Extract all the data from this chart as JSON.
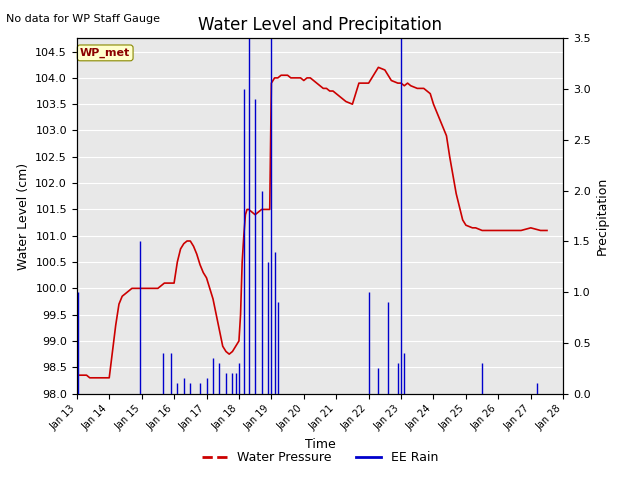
{
  "title": "Water Level and Precipitation",
  "top_left_text": "No data for WP Staff Gauge",
  "ylabel_left": "Water Level (cm)",
  "ylabel_right": "Precipitation",
  "xlabel": "Time",
  "legend_label_red": "Water Pressure",
  "legend_label_blue": "EE Rain",
  "wp_met_label": "WP_met",
  "ylim_left": [
    98.0,
    104.75
  ],
  "ylim_right": [
    0.0,
    3.5
  ],
  "yticks_left": [
    98.0,
    98.5,
    99.0,
    99.5,
    100.0,
    100.5,
    101.0,
    101.5,
    102.0,
    102.5,
    103.0,
    103.5,
    104.0,
    104.5
  ],
  "yticks_right": [
    0.0,
    0.5,
    1.0,
    1.5,
    2.0,
    2.5,
    3.0,
    3.5
  ],
  "plot_bg_color": "#e8e8e8",
  "red_color": "#cc0000",
  "blue_color": "#0000cc",
  "water_pressure": {
    "x": [
      13.0,
      13.05,
      13.1,
      13.2,
      13.3,
      13.4,
      13.5,
      13.6,
      13.7,
      13.8,
      13.9,
      14.0,
      14.1,
      14.2,
      14.3,
      14.4,
      14.5,
      14.6,
      14.7,
      14.8,
      14.9,
      15.0,
      15.1,
      15.2,
      15.3,
      15.4,
      15.5,
      15.6,
      15.7,
      15.8,
      15.9,
      16.0,
      16.05,
      16.1,
      16.2,
      16.3,
      16.4,
      16.5,
      16.6,
      16.7,
      16.8,
      16.9,
      17.0,
      17.1,
      17.2,
      17.3,
      17.4,
      17.5,
      17.6,
      17.7,
      17.8,
      17.9,
      18.0,
      18.05,
      18.1,
      18.15,
      18.2,
      18.25,
      18.3,
      18.4,
      18.5,
      18.6,
      18.7,
      18.8,
      18.85,
      18.9,
      18.95,
      19.0,
      19.05,
      19.1,
      19.2,
      19.3,
      19.4,
      19.5,
      19.6,
      19.7,
      19.8,
      19.9,
      20.0,
      20.1,
      20.2,
      20.3,
      20.4,
      20.5,
      20.6,
      20.7,
      20.8,
      20.9,
      21.0,
      21.1,
      21.2,
      21.3,
      21.5,
      21.7,
      21.9,
      22.0,
      22.1,
      22.2,
      22.3,
      22.5,
      22.7,
      22.9,
      23.0,
      23.1,
      23.2,
      23.3,
      23.5,
      23.7,
      23.9,
      24.0,
      24.2,
      24.4,
      24.5,
      24.7,
      24.9,
      25.0,
      25.2,
      25.3,
      25.5,
      25.7,
      26.0,
      26.3,
      26.5,
      26.7,
      27.0,
      27.3,
      27.5
    ],
    "y": [
      98.3,
      98.35,
      98.35,
      98.35,
      98.35,
      98.3,
      98.3,
      98.3,
      98.3,
      98.3,
      98.3,
      98.3,
      98.8,
      99.3,
      99.7,
      99.85,
      99.9,
      99.95,
      100.0,
      100.0,
      100.0,
      100.0,
      100.0,
      100.0,
      100.0,
      100.0,
      100.0,
      100.05,
      100.1,
      100.1,
      100.1,
      100.1,
      100.3,
      100.5,
      100.75,
      100.85,
      100.9,
      100.9,
      100.8,
      100.65,
      100.45,
      100.3,
      100.2,
      100.0,
      99.8,
      99.5,
      99.2,
      98.9,
      98.8,
      98.75,
      98.8,
      98.9,
      99.0,
      99.5,
      100.5,
      101.0,
      101.4,
      101.5,
      101.5,
      101.45,
      101.4,
      101.45,
      101.5,
      101.5,
      101.5,
      101.5,
      101.5,
      103.9,
      103.95,
      104.0,
      104.0,
      104.05,
      104.05,
      104.05,
      104.0,
      104.0,
      104.0,
      104.0,
      103.95,
      104.0,
      104.0,
      103.95,
      103.9,
      103.85,
      103.8,
      103.8,
      103.75,
      103.75,
      103.7,
      103.65,
      103.6,
      103.55,
      103.5,
      103.9,
      103.9,
      103.9,
      104.0,
      104.1,
      104.2,
      104.15,
      103.95,
      103.9,
      103.9,
      103.85,
      103.9,
      103.85,
      103.8,
      103.8,
      103.7,
      103.5,
      103.2,
      102.9,
      102.5,
      101.8,
      101.3,
      101.2,
      101.15,
      101.15,
      101.1,
      101.1,
      101.1,
      101.1,
      101.1,
      101.1,
      101.15,
      101.1,
      101.1
    ]
  },
  "ee_rain": {
    "x": [
      13.05,
      14.95,
      15.65,
      15.9,
      16.1,
      16.3,
      16.5,
      16.8,
      17.0,
      17.2,
      17.4,
      17.6,
      17.8,
      17.9,
      18.0,
      18.15,
      18.3,
      18.5,
      18.7,
      18.9,
      19.0,
      19.1,
      19.2,
      22.0,
      22.3,
      22.6,
      22.9,
      23.0,
      23.1,
      25.5,
      27.2
    ],
    "y": [
      1.0,
      1.5,
      0.4,
      0.4,
      0.1,
      0.15,
      0.1,
      0.1,
      0.15,
      0.35,
      0.3,
      0.2,
      0.2,
      0.2,
      0.3,
      3.0,
      3.5,
      2.9,
      2.0,
      1.3,
      3.5,
      1.4,
      0.9,
      1.0,
      0.25,
      0.9,
      0.3,
      3.5,
      0.4,
      0.3,
      0.1
    ]
  },
  "xmin": 13,
  "xmax": 28,
  "xtick_positions": [
    13,
    14,
    15,
    16,
    17,
    18,
    19,
    20,
    21,
    22,
    23,
    24,
    25,
    26,
    27,
    28
  ],
  "xtick_labels": [
    "Jan 13",
    "Jan 14",
    "Jan 15",
    "Jan 16",
    "Jan 17",
    "Jan 18",
    "Jan 19",
    "Jan 20",
    "Jan 21",
    "Jan 22",
    "Jan 23",
    "Jan 24",
    "Jan 25",
    "Jan 26",
    "Jan 27",
    "Jan 28"
  ]
}
